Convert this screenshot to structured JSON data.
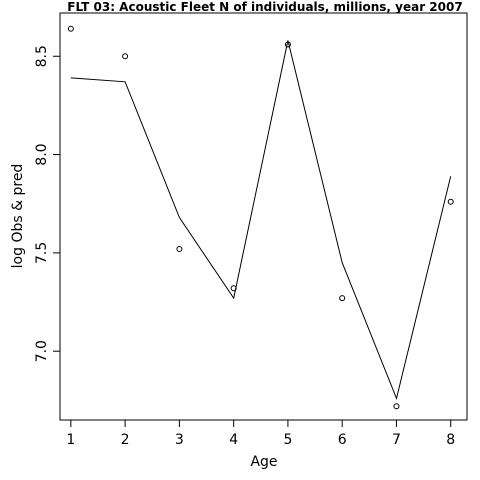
{
  "chart_data": {
    "type": "line",
    "title": "FLT 03: Acoustic Fleet  N of individuals, millions, year 2007",
    "xlabel": "Age",
    "ylabel": "log Obs & pred",
    "xlim": [
      0.8,
      8.3
    ],
    "ylim": [
      6.65,
      8.72
    ],
    "xticks": [
      "1",
      "2",
      "3",
      "4",
      "5",
      "6",
      "7",
      "8"
    ],
    "yticks": [
      "7.0",
      "7.5",
      "8.0",
      "8.5"
    ],
    "grid": false,
    "series": [
      {
        "style": "points",
        "x": [
          1,
          2,
          3,
          4,
          5,
          6,
          7,
          8
        ],
        "values": [
          8.64,
          8.5,
          7.52,
          7.32,
          8.56,
          7.27,
          6.72,
          7.76
        ]
      },
      {
        "style": "line",
        "x": [
          1,
          2,
          3,
          4,
          5,
          6,
          7,
          8
        ],
        "values": [
          8.39,
          8.37,
          7.68,
          7.27,
          8.58,
          7.45,
          6.76,
          7.89
        ]
      }
    ]
  }
}
